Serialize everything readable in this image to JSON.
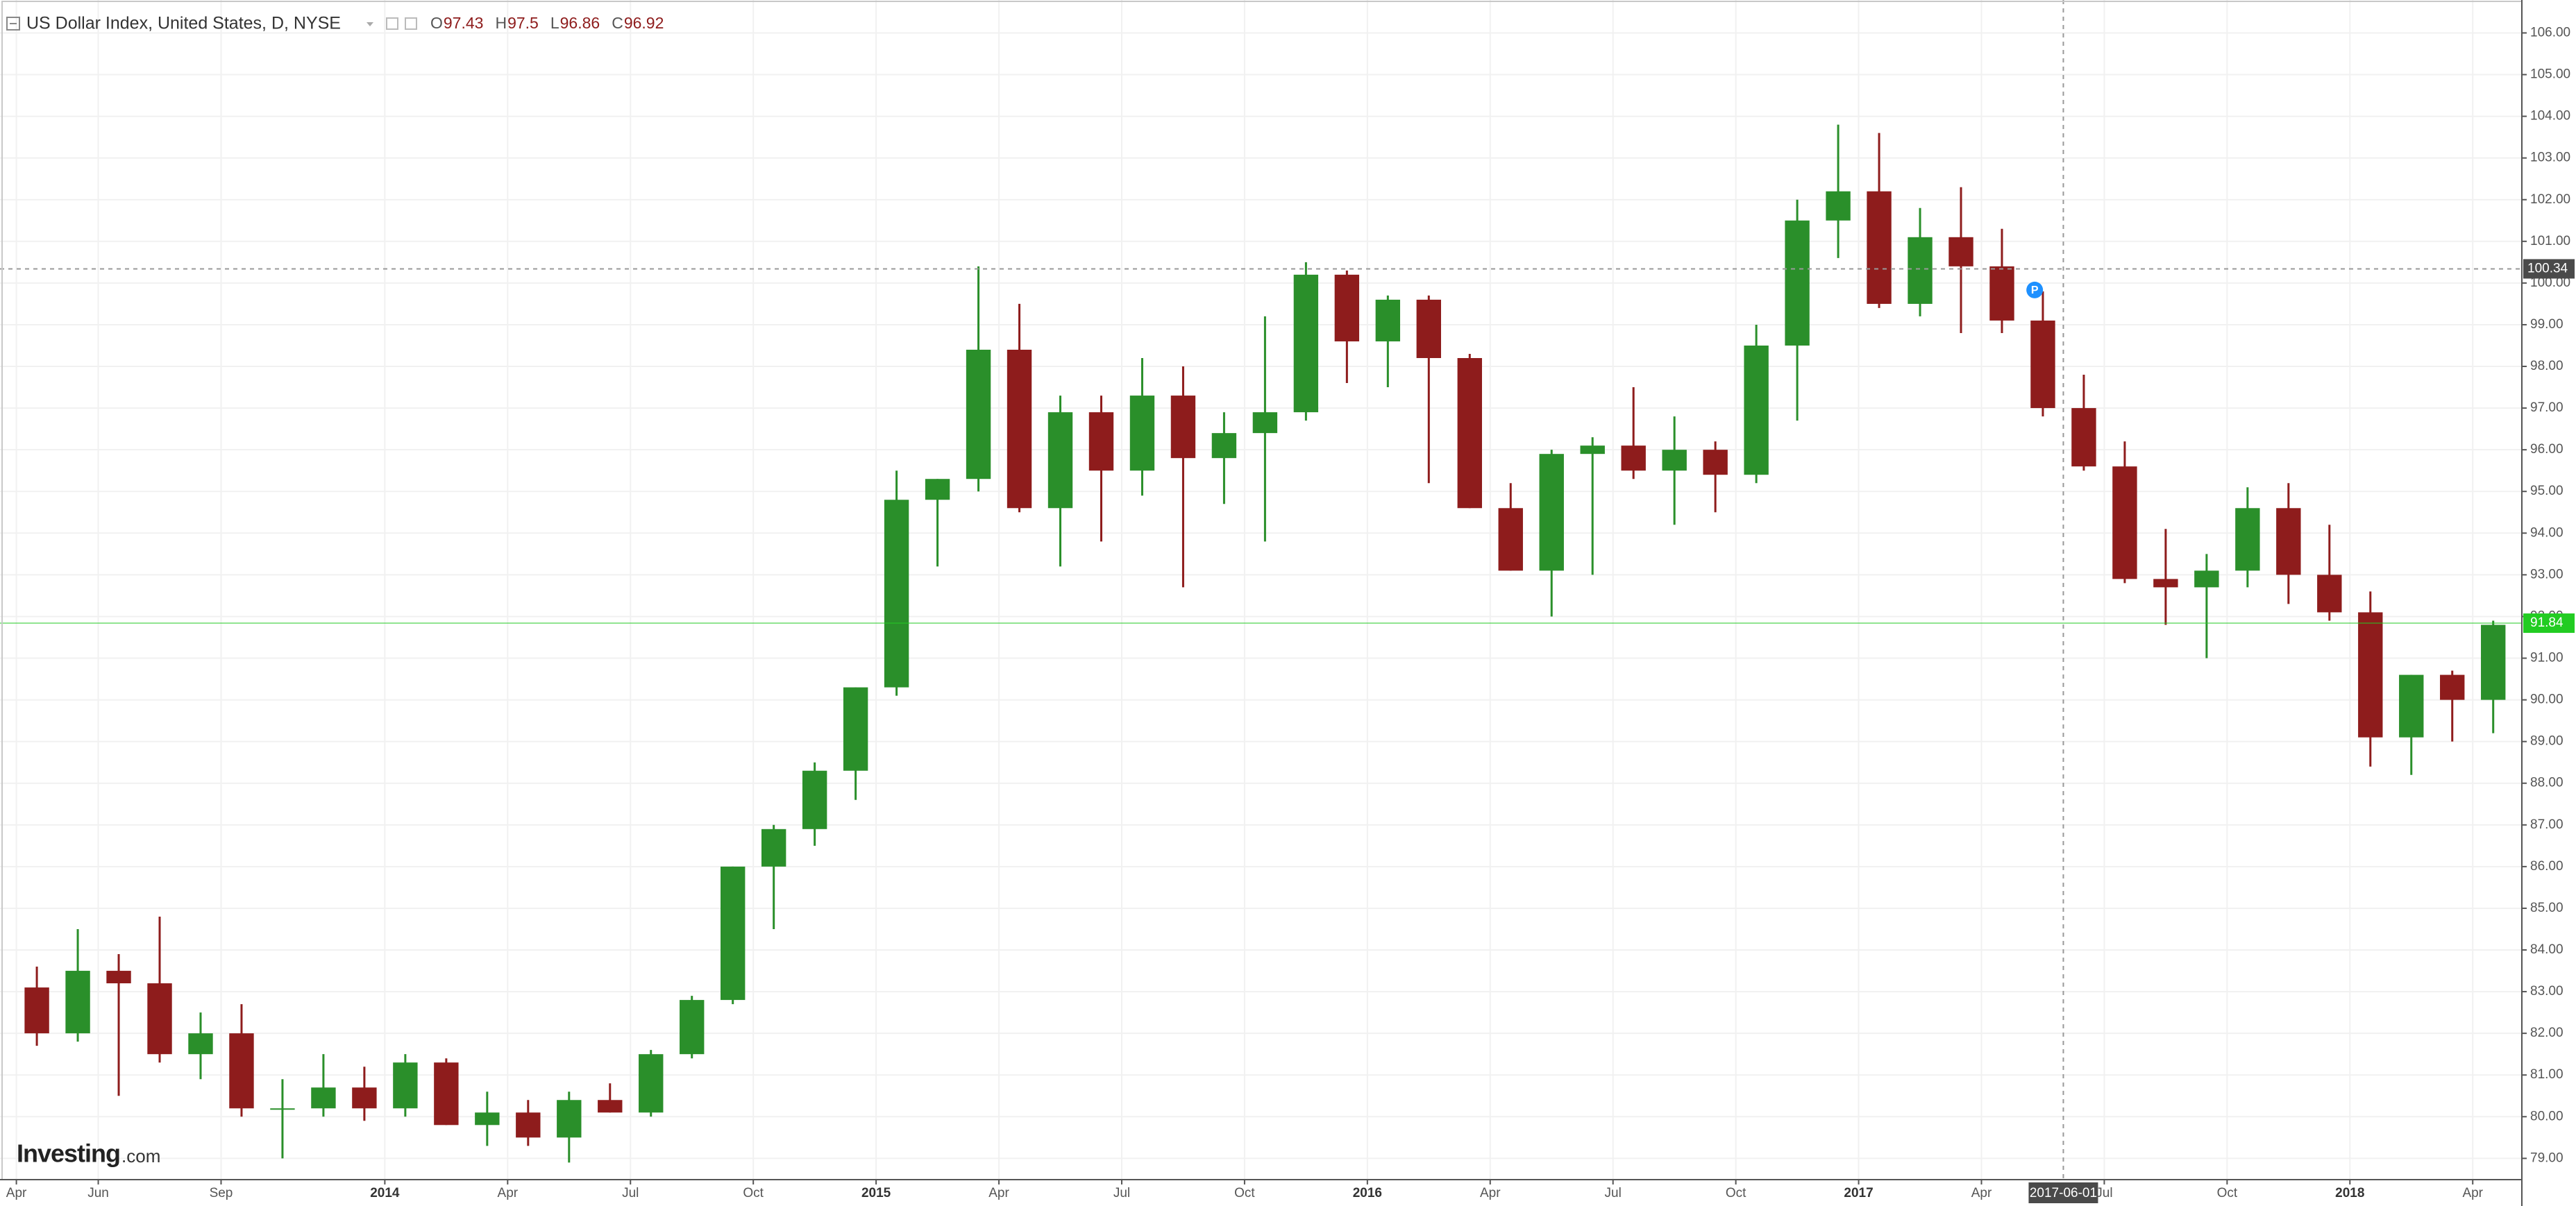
{
  "chart_data": {
    "type": "candlestick",
    "title": "US Dollar Index, United States, D, NYSE",
    "ohlc_header": [
      {
        "label": "O",
        "value": 97.43
      },
      {
        "label": "H",
        "value": 97.5
      },
      {
        "label": "L",
        "value": 96.86
      },
      {
        "label": "C",
        "value": 96.92
      }
    ],
    "open": [
      83.1,
      82.0,
      83.5,
      83.2,
      81.5,
      82.0,
      80.2,
      80.2,
      80.7,
      80.2,
      81.3,
      79.8,
      80.1,
      79.5,
      80.4,
      80.1,
      81.5,
      82.8,
      86.0,
      86.9,
      88.3,
      90.3,
      94.8,
      95.3,
      98.4,
      94.6,
      96.9,
      95.5,
      97.3,
      95.8,
      96.4,
      96.9,
      100.2,
      98.6,
      99.6,
      98.2,
      94.6,
      93.1,
      95.9,
      96.1,
      95.5,
      96.0,
      95.4,
      98.5,
      101.5,
      102.2,
      99.5,
      101.1,
      100.4,
      99.1,
      97.0,
      95.6,
      92.9,
      92.7,
      93.1,
      94.6,
      93.0,
      92.1,
      89.1,
      90.6,
      90.0
    ],
    "high": [
      83.6,
      84.5,
      83.9,
      84.8,
      82.5,
      82.7,
      80.9,
      81.5,
      81.2,
      81.5,
      81.4,
      80.6,
      80.4,
      80.6,
      80.8,
      81.6,
      82.9,
      86.0,
      87.0,
      88.5,
      90.3,
      95.5,
      95.3,
      100.4,
      99.5,
      97.3,
      97.3,
      98.2,
      98.0,
      96.9,
      99.2,
      100.5,
      100.3,
      99.7,
      99.7,
      98.3,
      95.2,
      96.0,
      96.3,
      97.5,
      96.8,
      96.2,
      99.0,
      102.0,
      103.8,
      103.6,
      101.8,
      102.3,
      101.3,
      99.8,
      97.8,
      96.2,
      94.1,
      93.5,
      95.1,
      95.2,
      94.2,
      92.6,
      90.6,
      90.7,
      91.9
    ],
    "low": [
      81.7,
      81.8,
      80.5,
      81.3,
      80.9,
      80.0,
      79.0,
      80.0,
      79.9,
      80.0,
      79.8,
      79.3,
      79.3,
      78.9,
      80.1,
      80.0,
      81.4,
      82.7,
      84.5,
      86.5,
      87.6,
      90.1,
      93.2,
      95.0,
      94.5,
      93.2,
      93.8,
      94.9,
      92.7,
      94.7,
      93.8,
      96.7,
      97.6,
      97.5,
      95.2,
      94.6,
      93.1,
      92.0,
      93.0,
      95.3,
      94.2,
      94.5,
      95.2,
      96.7,
      100.6,
      99.4,
      99.2,
      98.8,
      98.8,
      96.8,
      95.5,
      92.8,
      91.8,
      91.0,
      92.7,
      92.3,
      91.9,
      88.4,
      88.2,
      89.0,
      89.2
    ],
    "close": [
      82.0,
      83.5,
      83.2,
      81.5,
      82.0,
      80.2,
      80.2,
      80.7,
      80.2,
      81.3,
      79.8,
      80.1,
      79.5,
      80.4,
      80.1,
      81.5,
      82.8,
      86.0,
      86.9,
      88.3,
      90.3,
      94.8,
      95.3,
      98.4,
      94.6,
      96.9,
      95.5,
      97.3,
      95.8,
      96.4,
      96.9,
      100.2,
      98.6,
      99.6,
      98.2,
      94.6,
      93.1,
      95.9,
      96.1,
      95.5,
      96.0,
      95.4,
      98.5,
      101.5,
      102.2,
      99.5,
      101.1,
      100.4,
      99.1,
      97.0,
      95.6,
      92.9,
      92.7,
      93.1,
      94.6,
      93.0,
      92.1,
      89.1,
      90.6,
      90.0,
      91.8
    ],
    "up_color": "#2a8f2a",
    "down_color": "#8e1c1c",
    "xlim": [
      -0.4,
      61.2
    ],
    "xticks": [
      {
        "value": 0,
        "label": "Apr"
      },
      {
        "value": 2,
        "label": "Jun"
      },
      {
        "value": 5,
        "label": "Sep"
      },
      {
        "value": 9,
        "label": "2014"
      },
      {
        "value": 12,
        "label": "Apr"
      },
      {
        "value": 15,
        "label": "Jul"
      },
      {
        "value": 18,
        "label": "Oct"
      },
      {
        "value": 21,
        "label": "2015"
      },
      {
        "value": 24,
        "label": "Apr"
      },
      {
        "value": 27,
        "label": "Jul"
      },
      {
        "value": 30,
        "label": "Oct"
      },
      {
        "value": 33,
        "label": "2016"
      },
      {
        "value": 36,
        "label": "Apr"
      },
      {
        "value": 39,
        "label": "Jul"
      },
      {
        "value": 42,
        "label": "Oct"
      },
      {
        "value": 45,
        "label": "2017"
      },
      {
        "value": 48,
        "label": "Apr"
      },
      {
        "value": 51,
        "label": "Jul"
      },
      {
        "value": 54,
        "label": "Oct"
      },
      {
        "value": 57,
        "label": "2018"
      },
      {
        "value": 60,
        "label": "Apr"
      }
    ],
    "ylim": [
      78.49,
      106.79
    ],
    "yticks": [
      {
        "value": 79,
        "label": "79.00"
      },
      {
        "value": 80,
        "label": "80.00"
      },
      {
        "value": 81,
        "label": "81.00"
      },
      {
        "value": 82,
        "label": "82.00"
      },
      {
        "value": 83,
        "label": "83.00"
      },
      {
        "value": 84,
        "label": "84.00"
      },
      {
        "value": 85,
        "label": "85.00"
      },
      {
        "value": 86,
        "label": "86.00"
      },
      {
        "value": 87,
        "label": "87.00"
      },
      {
        "value": 88,
        "label": "88.00"
      },
      {
        "value": 89,
        "label": "89.00"
      },
      {
        "value": 90,
        "label": "90.00"
      },
      {
        "value": 91,
        "label": "91.00"
      },
      {
        "value": 92,
        "label": "92.00"
      },
      {
        "value": 93,
        "label": "93.00"
      },
      {
        "value": 94,
        "label": "94.00"
      },
      {
        "value": 95,
        "label": "95.00"
      },
      {
        "value": 96,
        "label": "96.00"
      },
      {
        "value": 97,
        "label": "97.00"
      },
      {
        "value": 98,
        "label": "98.00"
      },
      {
        "value": 99,
        "label": "99.00"
      },
      {
        "value": 100,
        "label": "100.00"
      },
      {
        "value": 101,
        "label": "101.00"
      },
      {
        "value": 102,
        "label": "102.00"
      },
      {
        "value": 103,
        "label": "103.00"
      },
      {
        "value": 104,
        "label": "104.00"
      },
      {
        "value": 105,
        "label": "105.00"
      },
      {
        "value": 106,
        "label": "106.00"
      }
    ],
    "grid": true,
    "crosshair": {
      "x": {
        "value": 50,
        "label": "2017-06-01"
      },
      "y": 100.34
    },
    "last_price": {
      "value": 91.84,
      "color": "#22cc22"
    },
    "annotation": {
      "label": "P",
      "x": 49.3,
      "y": 99.6
    },
    "watermark": {
      "brand": "Investing",
      "suffix": ".com"
    }
  }
}
